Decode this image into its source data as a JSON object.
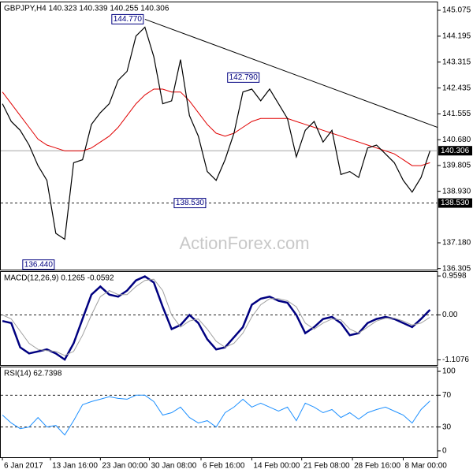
{
  "chart_data": [
    {
      "type": "line",
      "title": "GBPJPY,H4  140.323 140.339 140.255 140.306",
      "watermark": "ActionForex.com",
      "ylim": [
        136.27,
        145.37
      ],
      "yticks": [
        145.075,
        144.195,
        143.315,
        142.435,
        141.555,
        {
          "value": 140.68,
          "label": "140.680"
        },
        139.805,
        {
          "value": 138.93,
          "label": "138.930"
        },
        {
          "value": 137.18,
          "label": "137.180"
        },
        136.305
      ],
      "series": [
        {
          "color": "#000000",
          "width": 1.2,
          "values": [
            141.9,
            141.3,
            141.0,
            140.5,
            139.8,
            139.3,
            137.5,
            137.3,
            139.9,
            140.0,
            141.2,
            141.6,
            141.9,
            142.7,
            143.0,
            144.2,
            144.5,
            143.5,
            141.9,
            142.0,
            143.4,
            141.5,
            140.8,
            139.6,
            139.3,
            140.0,
            140.9,
            142.3,
            142.4,
            142.0,
            142.4,
            141.9,
            141.4,
            140.1,
            141.0,
            141.3,
            140.6,
            141.0,
            139.5,
            139.6,
            139.4,
            140.4,
            140.5,
            140.2,
            139.9,
            139.3,
            138.9,
            139.4,
            140.3
          ]
        },
        {
          "color": "#e00000",
          "width": 1,
          "values": [
            142.3,
            141.9,
            141.5,
            141.1,
            140.7,
            140.5,
            140.4,
            140.3,
            140.3,
            140.3,
            140.4,
            140.6,
            140.8,
            141.1,
            141.5,
            141.9,
            142.2,
            142.4,
            142.4,
            142.3,
            142.3,
            142.0,
            141.6,
            141.2,
            140.9,
            140.8,
            140.9,
            141.1,
            141.3,
            141.4,
            141.4,
            141.4,
            141.4,
            141.3,
            141.2,
            141.1,
            141.0,
            140.9,
            140.8,
            140.7,
            140.6,
            140.5,
            140.4,
            140.3,
            140.2,
            140.0,
            139.8,
            139.8,
            139.9
          ]
        }
      ],
      "trendline": {
        "color": "#000000",
        "x": [
          16,
          48.85
        ],
        "values": [
          144.77,
          141.1
        ]
      },
      "levels": [
        {
          "value": 140.306,
          "label": "140.306",
          "style": "solid"
        },
        {
          "value": 138.53,
          "label": "138.530",
          "style": "dashed"
        }
      ],
      "annotations": [
        {
          "x": 16,
          "value": 144.77,
          "label": "144.770"
        },
        {
          "x": 29,
          "value": 142.79,
          "label": "142.790"
        },
        {
          "x": 23,
          "value": 138.53,
          "label": "138.530"
        },
        {
          "x": 6,
          "value": 136.44,
          "label": "136.440"
        }
      ]
    },
    {
      "type": "line",
      "title": "MACD(12,26,9) 0.1265 -0.0592",
      "ylim": [
        -1.235,
        1.078
      ],
      "yticks": [
        0.9598,
        {
          "value": 0,
          "label": "0.00"
        },
        -1.1076
      ],
      "levels": [
        {
          "value": 0,
          "style": "dashed"
        }
      ],
      "series": [
        {
          "color": "#000080",
          "width": 2.5,
          "values": [
            -0.15,
            -0.2,
            -0.8,
            -0.95,
            -0.9,
            -0.85,
            -0.95,
            -1.1,
            -0.7,
            -0.1,
            0.5,
            0.7,
            0.5,
            0.45,
            0.6,
            0.85,
            0.95,
            0.8,
            0.2,
            -0.35,
            -0.25,
            0.0,
            -0.2,
            -0.6,
            -0.85,
            -0.8,
            -0.55,
            -0.3,
            0.25,
            0.4,
            0.45,
            0.35,
            0.3,
            0.0,
            -0.45,
            -0.3,
            -0.1,
            -0.05,
            -0.2,
            -0.5,
            -0.45,
            -0.2,
            -0.1,
            -0.05,
            -0.1,
            -0.2,
            -0.3,
            -0.1,
            0.1265
          ]
        },
        {
          "color": "#a0a0a0",
          "width": 1,
          "values": [
            0.0,
            -0.1,
            -0.4,
            -0.7,
            -0.85,
            -0.88,
            -0.9,
            -1.0,
            -0.9,
            -0.5,
            0.0,
            0.45,
            0.6,
            0.5,
            0.5,
            0.7,
            0.85,
            0.88,
            0.6,
            0.0,
            -0.3,
            -0.15,
            -0.1,
            -0.35,
            -0.65,
            -0.8,
            -0.7,
            -0.45,
            -0.05,
            0.25,
            0.4,
            0.4,
            0.35,
            0.2,
            -0.2,
            -0.35,
            -0.2,
            -0.1,
            -0.12,
            -0.35,
            -0.45,
            -0.3,
            -0.15,
            -0.08,
            -0.08,
            -0.15,
            -0.25,
            -0.2,
            -0.0592
          ]
        }
      ]
    },
    {
      "type": "line",
      "title": "RSI(14) 62.7398",
      "ylim": [
        -8,
        106
      ],
      "yticks": [
        100,
        70,
        30,
        0
      ],
      "levels": [
        {
          "value": 70,
          "style": "dashed"
        },
        {
          "value": 30,
          "style": "dashed"
        }
      ],
      "series": [
        {
          "color": "#1e90ff",
          "width": 1,
          "values": [
            45,
            35,
            28,
            30,
            42,
            30,
            32,
            20,
            38,
            58,
            62,
            65,
            68,
            66,
            65,
            70,
            70,
            62,
            45,
            48,
            55,
            42,
            35,
            38,
            30,
            48,
            55,
            65,
            55,
            60,
            55,
            50,
            55,
            38,
            60,
            55,
            48,
            52,
            42,
            48,
            40,
            48,
            52,
            55,
            50,
            45,
            35,
            52,
            62.7398
          ]
        }
      ],
      "xlim": [
        -0.27,
        48.85
      ],
      "xticks": [
        {
          "value": 0,
          "label": "6 Jan 2017"
        },
        {
          "value": 5.4,
          "label": "13 Jan 16:00"
        },
        {
          "value": 11,
          "label": "23 Jan 00:00"
        },
        {
          "value": 16.5,
          "label": "30 Jan 08:00"
        },
        {
          "value": 22.3,
          "label": "6 Feb 16:00"
        },
        {
          "value": 28,
          "label": "14 Feb 00:00"
        },
        {
          "value": 33.6,
          "label": "21 Feb 08:00"
        },
        {
          "value": 39.3,
          "label": "28 Feb 16:00"
        },
        {
          "value": 45,
          "label": "8 Mar 00:00"
        }
      ]
    }
  ]
}
